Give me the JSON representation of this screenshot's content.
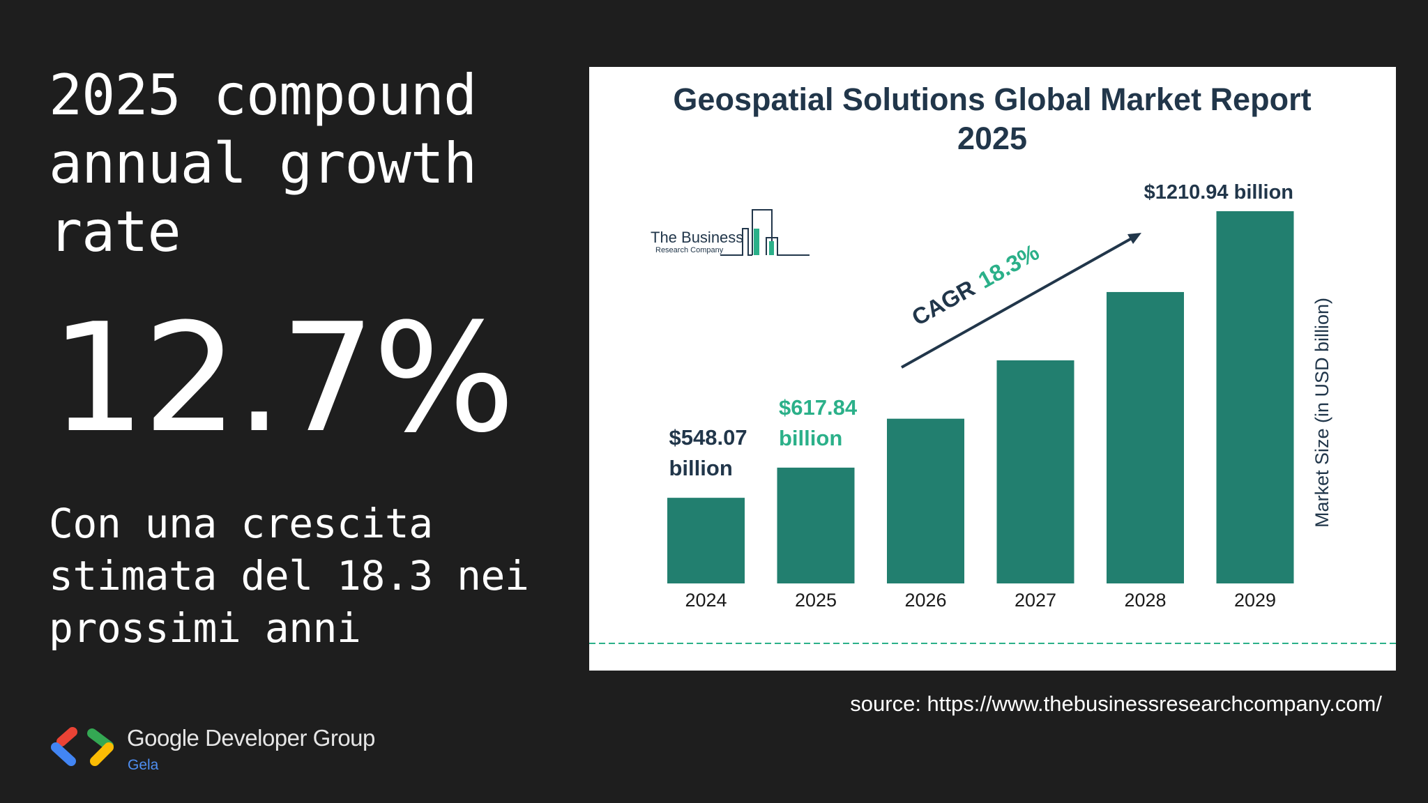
{
  "slide": {
    "heading": "2025 compound annual growth rate",
    "big_value": "12.7%",
    "subtext": "Con una crescita stimata del 18.3 nei prossimi anni",
    "source": "source: https://www.thebusinessresearchcompany.com/",
    "footer": {
      "group_name": "Google Developer Group",
      "chapter": "Gela"
    }
  },
  "brand": {
    "company_line1": "The Business",
    "company_line2": "Research Company"
  },
  "colors": {
    "background": "#1e1e1e",
    "bar": "#227f6f",
    "title": "#21364a",
    "accent_green": "#2bb089",
    "dashed_line": "#2bb089"
  },
  "chart_data": {
    "type": "bar",
    "title": "Geospatial Solutions Global Market Report",
    "title_line2": "2025",
    "ylabel": "Market Size (in USD billion)",
    "categories": [
      "2024",
      "2025",
      "2026",
      "2027",
      "2028",
      "2029"
    ],
    "values": [
      548.07,
      617.84,
      731,
      866,
      1024,
      1210.94
    ],
    "data_labels": [
      {
        "category": "2024",
        "line1": "$548.07",
        "line2": "billion",
        "color": "#21364a"
      },
      {
        "category": "2025",
        "line1": "$617.84",
        "line2": "billion",
        "color": "#2bb089"
      },
      {
        "category": "2029",
        "line1": "$1210.94 billion",
        "line2": "",
        "color": "#21364a"
      }
    ],
    "annotation": {
      "label": "CAGR",
      "value": "18.3%"
    },
    "ylim": [
      350,
      1210.94
    ],
    "grid": false,
    "legend": "none"
  }
}
